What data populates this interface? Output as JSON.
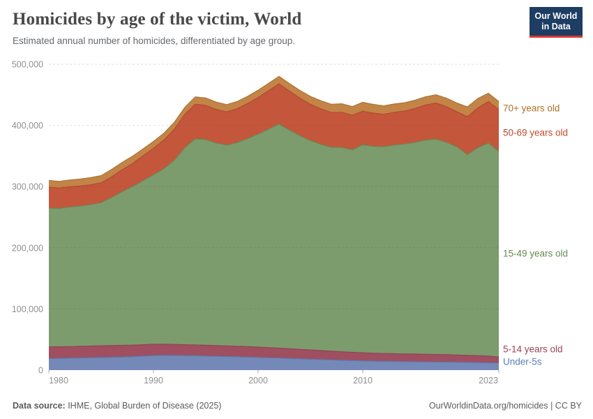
{
  "header": {
    "title": "Homicides by age of the victim, World",
    "subtitle": "Estimated annual number of homicides, differentiated by age group.",
    "logo": {
      "line1": "Our World",
      "line2": "in Data",
      "bg_color": "#1d3d63",
      "accent_color": "#dc382e"
    }
  },
  "footer": {
    "source_label": "Data source:",
    "source_text": " IHME, Global Burden of Disease (2025)",
    "credit": "OurWorldinData.org/homicides | CC BY"
  },
  "chart_data": {
    "type": "area",
    "stacked": true,
    "title": "Homicides by age of the victim, World",
    "xlabel": "",
    "ylabel": "Estimated annual number of homicides",
    "grid": "horizontal-dashed",
    "legend_position": "right-edge-labels",
    "xlim": [
      1980,
      2023
    ],
    "ylim": [
      0,
      500000
    ],
    "xticks": [
      1980,
      1990,
      2000,
      2010,
      2023
    ],
    "yticks": [
      0,
      100000,
      200000,
      300000,
      400000,
      500000
    ],
    "plot": {
      "x0": 70,
      "x1": 715,
      "y0": 530,
      "y1": 92,
      "label_x": 721
    },
    "x": [
      1980,
      1981,
      1982,
      1983,
      1984,
      1985,
      1986,
      1987,
      1988,
      1989,
      1990,
      1991,
      1992,
      1993,
      1994,
      1995,
      1996,
      1997,
      1998,
      1999,
      2000,
      2001,
      2002,
      2003,
      2004,
      2005,
      2006,
      2007,
      2008,
      2009,
      2010,
      2011,
      2012,
      2013,
      2014,
      2015,
      2016,
      2017,
      2018,
      2019,
      2020,
      2021,
      2022,
      2023
    ],
    "series": [
      {
        "id": "under-5s",
        "label": "Under-5s",
        "fill": "#7489b7",
        "edge": "#5c76ad",
        "label_color": "#5c7db5",
        "label_y": 518,
        "values": [
          19000,
          19200,
          19600,
          20000,
          20300,
          20600,
          21000,
          21500,
          22100,
          23000,
          23800,
          24100,
          24000,
          23800,
          23500,
          23100,
          22700,
          22300,
          21800,
          21300,
          20800,
          20200,
          19700,
          19100,
          18500,
          17900,
          17300,
          16700,
          16100,
          15600,
          15100,
          14700,
          14400,
          14100,
          13900,
          13700,
          13500,
          13300,
          13100,
          12900,
          12600,
          12300,
          12000,
          11700
        ]
      },
      {
        "id": "5-14-years-old",
        "label": "5-14 years old",
        "fill": "#9f4f60",
        "edge": "#8f4356",
        "label_color": "#9d4354",
        "label_y": 500,
        "values": [
          19000,
          18900,
          18900,
          19000,
          19100,
          19200,
          19100,
          19000,
          18800,
          18600,
          18400,
          18200,
          18000,
          17800,
          17600,
          17500,
          17400,
          17300,
          17100,
          17000,
          16800,
          16600,
          16300,
          15900,
          15500,
          15100,
          14700,
          14300,
          13900,
          13500,
          13200,
          13000,
          12800,
          12700,
          12600,
          12500,
          12400,
          12300,
          12100,
          11900,
          11600,
          11300,
          11000,
          9800
        ]
      },
      {
        "id": "15-49-years-old",
        "label": "15-49 years old",
        "fill": "#7d9c6d",
        "edge": "#668c54",
        "label_color": "#648a52",
        "label_y": 363,
        "values": [
          227000,
          226000,
          228000,
          229000,
          231000,
          234000,
          242000,
          251000,
          259000,
          268000,
          277000,
          287000,
          301000,
          322000,
          337000,
          336000,
          331000,
          328000,
          333000,
          340000,
          348000,
          357000,
          366000,
          357000,
          349000,
          342000,
          337000,
          333000,
          334000,
          331000,
          340000,
          338000,
          338000,
          341000,
          343000,
          346000,
          350000,
          352000,
          347000,
          340000,
          328000,
          340000,
          348000,
          336000
        ]
      },
      {
        "id": "50-69-years-old",
        "label": "50-69 years old",
        "fill": "#c4563c",
        "edge": "#b34a2f",
        "label_color": "#bd4b2d",
        "label_y": 190,
        "values": [
          34000,
          33500,
          33200,
          33000,
          32600,
          32200,
          34000,
          36000,
          38000,
          40500,
          43500,
          47000,
          51000,
          54500,
          56500,
          56000,
          55000,
          54500,
          55500,
          57500,
          60000,
          63000,
          66000,
          64000,
          61500,
          59500,
          58000,
          57000,
          57500,
          56500,
          55000,
          54500,
          53000,
          53500,
          54000,
          55500,
          57500,
          59000,
          58500,
          57500,
          62000,
          65000,
          68000,
          68500
        ]
      },
      {
        "id": "70-plus-years-old",
        "label": "70+ years old",
        "fill": "#c28547",
        "edge": "#ab7434",
        "label_color": "#b0702a",
        "label_y": 155,
        "values": [
          11000,
          11000,
          11100,
          11300,
          11600,
          11900,
          12000,
          12000,
          11900,
          11600,
          11200,
          11000,
          11200,
          11600,
          12000,
          12100,
          12000,
          11900,
          11800,
          11800,
          11900,
          12000,
          12200,
          12400,
          12700,
          13000,
          13300,
          13600,
          13900,
          14200,
          14500,
          14200,
          13800,
          13700,
          13600,
          13500,
          13400,
          13500,
          13800,
          14200,
          16000,
          15500,
          13500,
          13000
        ]
      }
    ],
    "axis_colors": {
      "tick_label": "#8f8f8f",
      "tick_mark": "#aaaaaa",
      "gridline": "#4d4d4d"
    }
  }
}
